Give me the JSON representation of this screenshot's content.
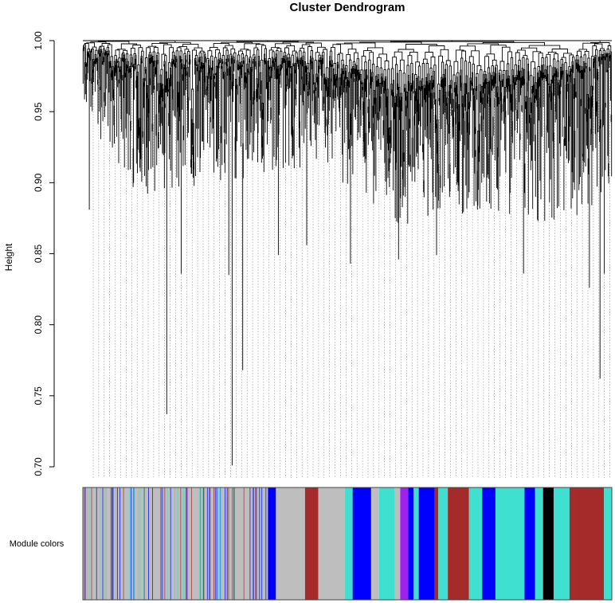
{
  "chart_data": {
    "type": "dendrogram",
    "title": "Cluster Dendrogram",
    "xlabel": "",
    "ylabel": "Height",
    "ylim": [
      0.7,
      1.0
    ],
    "yticks": [
      "0.70",
      "0.75",
      "0.80",
      "0.85",
      "0.90",
      "0.95",
      "1.00"
    ],
    "color_bar_label": "Module colors",
    "grid": false,
    "legend": "none",
    "branch_color": "#000000",
    "module_colors": {
      "grey": "#bebebe",
      "blue": "#0000ff",
      "turquoise": "#40e0d0",
      "brown": "#a52a2a",
      "black": "#000000",
      "purple": "#a020f0"
    },
    "color_segments": [
      {
        "from": 0.0,
        "to": 0.35,
        "color": "grey"
      },
      {
        "from": 0.35,
        "to": 0.365,
        "color": "blue"
      },
      {
        "from": 0.365,
        "to": 0.42,
        "color": "grey"
      },
      {
        "from": 0.42,
        "to": 0.445,
        "color": "brown"
      },
      {
        "from": 0.445,
        "to": 0.495,
        "color": "grey"
      },
      {
        "from": 0.495,
        "to": 0.51,
        "color": "turquoise"
      },
      {
        "from": 0.51,
        "to": 0.545,
        "color": "blue"
      },
      {
        "from": 0.545,
        "to": 0.56,
        "color": "grey"
      },
      {
        "from": 0.56,
        "to": 0.59,
        "color": "turquoise"
      },
      {
        "from": 0.59,
        "to": 0.6,
        "color": "grey"
      },
      {
        "from": 0.6,
        "to": 0.615,
        "color": "purple"
      },
      {
        "from": 0.615,
        "to": 0.625,
        "color": "blue"
      },
      {
        "from": 0.625,
        "to": 0.635,
        "color": "turquoise"
      },
      {
        "from": 0.635,
        "to": 0.665,
        "color": "blue"
      },
      {
        "from": 0.665,
        "to": 0.672,
        "color": "brown"
      },
      {
        "from": 0.672,
        "to": 0.69,
        "color": "turquoise"
      },
      {
        "from": 0.69,
        "to": 0.73,
        "color": "brown"
      },
      {
        "from": 0.73,
        "to": 0.755,
        "color": "turquoise"
      },
      {
        "from": 0.755,
        "to": 0.78,
        "color": "blue"
      },
      {
        "from": 0.78,
        "to": 0.835,
        "color": "turquoise"
      },
      {
        "from": 0.835,
        "to": 0.855,
        "color": "blue"
      },
      {
        "from": 0.855,
        "to": 0.87,
        "color": "turquoise"
      },
      {
        "from": 0.87,
        "to": 0.89,
        "color": "black"
      },
      {
        "from": 0.89,
        "to": 0.92,
        "color": "turquoise"
      },
      {
        "from": 0.92,
        "to": 0.93,
        "color": "brown"
      },
      {
        "from": 0.93,
        "to": 0.985,
        "color": "brown"
      },
      {
        "from": 0.985,
        "to": 1.0,
        "color": "turquoise"
      }
    ],
    "color_flecks": {
      "grey_region": [
        0.0,
        0.35
      ],
      "blue_share": 0.45,
      "brown_share": 0.25,
      "turquoise_share": 0.3
    },
    "leaf_height_profile": [
      {
        "pos": 0.0,
        "min": 0.95,
        "max": 0.995
      },
      {
        "pos": 0.1,
        "min": 0.89,
        "max": 0.985
      },
      {
        "pos": 0.25,
        "min": 0.9,
        "max": 0.985
      },
      {
        "pos": 0.45,
        "min": 0.91,
        "max": 0.985
      },
      {
        "pos": 0.6,
        "min": 0.87,
        "max": 0.965
      },
      {
        "pos": 0.75,
        "min": 0.88,
        "max": 0.97
      },
      {
        "pos": 0.9,
        "min": 0.87,
        "max": 0.975
      },
      {
        "pos": 1.0,
        "min": 0.89,
        "max": 0.99
      }
    ],
    "notable_low_leaves": [
      {
        "pos": 0.158,
        "height": 0.737
      },
      {
        "pos": 0.282,
        "height": 0.701
      },
      {
        "pos": 0.302,
        "height": 0.768
      },
      {
        "pos": 0.275,
        "height": 0.835
      },
      {
        "pos": 0.185,
        "height": 0.836
      },
      {
        "pos": 0.012,
        "height": 0.881
      },
      {
        "pos": 0.369,
        "height": 0.849
      },
      {
        "pos": 0.423,
        "height": 0.856
      },
      {
        "pos": 0.505,
        "height": 0.843
      },
      {
        "pos": 0.596,
        "height": 0.846
      },
      {
        "pos": 0.668,
        "height": 0.849
      },
      {
        "pos": 0.833,
        "height": 0.836
      },
      {
        "pos": 0.957,
        "height": 0.826
      },
      {
        "pos": 0.977,
        "height": 0.762
      },
      {
        "pos": 0.985,
        "height": 0.836
      }
    ]
  }
}
